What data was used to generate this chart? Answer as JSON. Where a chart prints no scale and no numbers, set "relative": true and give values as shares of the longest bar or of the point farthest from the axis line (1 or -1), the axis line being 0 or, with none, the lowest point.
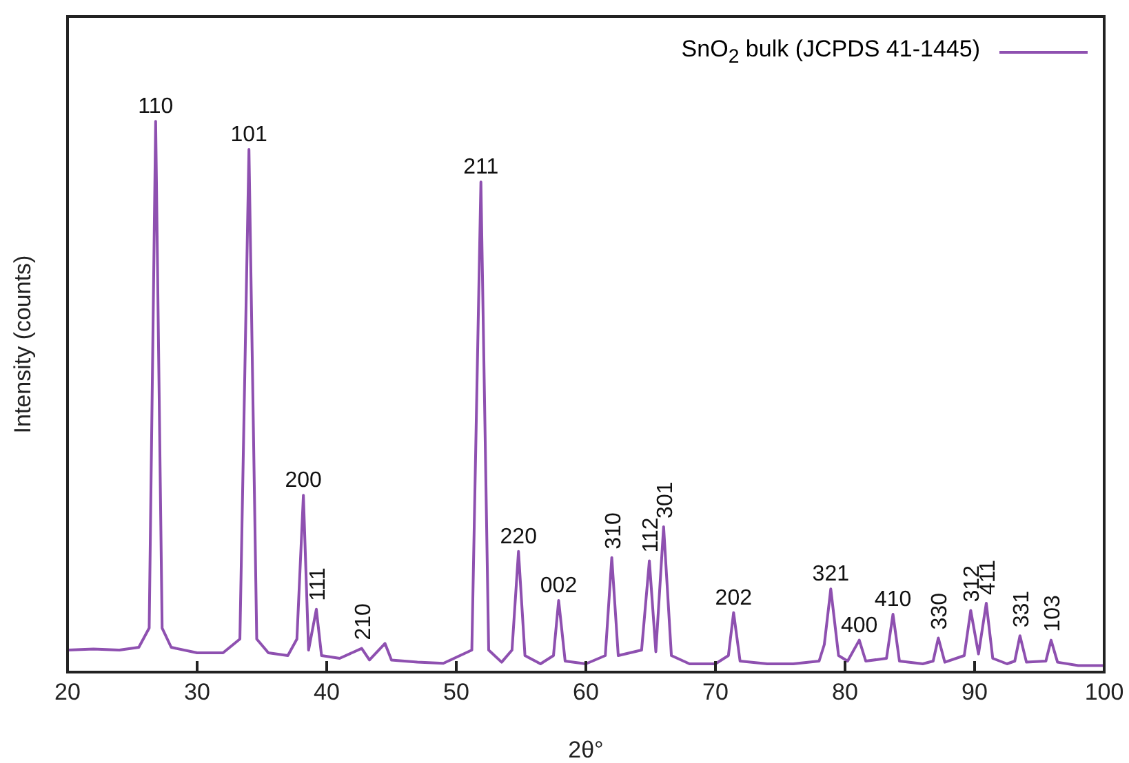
{
  "chart_data": {
    "type": "line",
    "relative": true,
    "xlabel": "2θ°",
    "ylabel": "Intensity (counts)",
    "xlim": [
      20,
      100
    ],
    "xticks": [
      20,
      30,
      40,
      50,
      60,
      70,
      80,
      90,
      100
    ],
    "legend": "top right",
    "x": [
      20,
      22,
      24,
      25.5,
      26.3,
      26.8,
      27.3,
      28,
      30,
      32,
      33.3,
      34.0,
      34.6,
      35.5,
      37,
      37.7,
      38.2,
      38.6,
      39.2,
      39.6,
      41,
      42.7,
      43.3,
      44.5,
      45,
      47,
      49,
      51.2,
      51.9,
      52.5,
      53.5,
      54.3,
      54.8,
      55.3,
      56.5,
      57.5,
      57.9,
      58.4,
      60,
      61.5,
      62.0,
      62.5,
      64.3,
      64.9,
      65.4,
      66.0,
      66.6,
      68,
      70,
      71,
      71.4,
      71.9,
      74,
      76,
      78,
      78.4,
      78.9,
      79.5,
      80.2,
      81.1,
      81.6,
      83.2,
      83.7,
      84.2,
      86,
      86.8,
      87.2,
      87.7,
      89.2,
      89.7,
      90.3,
      90.9,
      91.4,
      92.5,
      93.1,
      93.5,
      94,
      95.5,
      95.9,
      96.4,
      98,
      100
    ],
    "series": [
      {
        "name": "SnO$_{2}$ bulk (JCPDS 41-1445)",
        "color": "#8e50b0",
        "values": [
          0.04,
          0.042,
          0.04,
          0.045,
          0.08,
          1.0,
          0.08,
          0.045,
          0.035,
          0.035,
          0.06,
          0.949,
          0.06,
          0.035,
          0.03,
          0.06,
          0.321,
          0.04,
          0.114,
          0.03,
          0.025,
          0.043,
          0.022,
          0.052,
          0.022,
          0.018,
          0.016,
          0.04,
          0.89,
          0.04,
          0.018,
          0.04,
          0.219,
          0.03,
          0.015,
          0.03,
          0.13,
          0.02,
          0.015,
          0.03,
          0.208,
          0.03,
          0.04,
          0.202,
          0.037,
          0.264,
          0.03,
          0.015,
          0.015,
          0.03,
          0.108,
          0.02,
          0.015,
          0.015,
          0.02,
          0.05,
          0.151,
          0.03,
          0.02,
          0.058,
          0.02,
          0.025,
          0.105,
          0.02,
          0.015,
          0.02,
          0.062,
          0.018,
          0.03,
          0.112,
          0.033,
          0.125,
          0.025,
          0.015,
          0.02,
          0.066,
          0.018,
          0.02,
          0.058,
          0.018,
          0.012,
          0.012
        ]
      }
    ],
    "annotations": [
      {
        "text": "110",
        "x": 26.8,
        "y": 1.0
      },
      {
        "text": "101",
        "x": 34.0,
        "y": 0.949
      },
      {
        "text": "200",
        "x": 38.2,
        "y": 0.321
      },
      {
        "text": "111",
        "x": 39.2,
        "y": 0.114
      },
      {
        "text": "210",
        "x": 42.7,
        "y": 0.043
      },
      {
        "text": "211",
        "x": 51.9,
        "y": 0.89
      },
      {
        "text": "220",
        "x": 54.8,
        "y": 0.219
      },
      {
        "text": "002",
        "x": 57.9,
        "y": 0.13
      },
      {
        "text": "310",
        "x": 62.0,
        "y": 0.208
      },
      {
        "text": "112",
        "x": 64.9,
        "y": 0.202
      },
      {
        "text": "301",
        "x": 66.0,
        "y": 0.264
      },
      {
        "text": "202",
        "x": 71.4,
        "y": 0.108
      },
      {
        "text": "321",
        "x": 78.9,
        "y": 0.151
      },
      {
        "text": "400",
        "x": 81.1,
        "y": 0.058
      },
      {
        "text": "410",
        "x": 83.7,
        "y": 0.105
      },
      {
        "text": "330",
        "x": 87.2,
        "y": 0.062
      },
      {
        "text": "312",
        "x": 89.7,
        "y": 0.112
      },
      {
        "text": "411",
        "x": 90.9,
        "y": 0.125
      },
      {
        "text": "331",
        "x": 93.5,
        "y": 0.066
      },
      {
        "text": "103",
        "x": 95.9,
        "y": 0.058
      }
    ]
  }
}
